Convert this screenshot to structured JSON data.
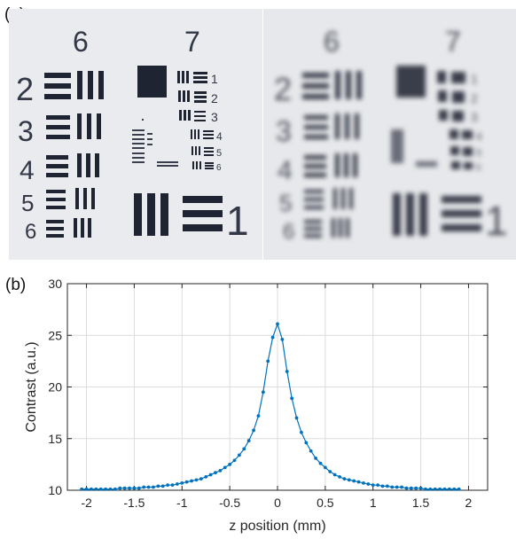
{
  "figure": {
    "panel_a_label": "(a)",
    "panel_b_label": "(b)",
    "panel_a": {
      "description_images": [
        "focused-resolution-target",
        "defocused-resolution-target"
      ],
      "target_labels": {
        "group_top_left": "6",
        "group_top_right": "7",
        "elements_left": [
          "2",
          "3",
          "4",
          "5",
          "6"
        ],
        "elements_right": [
          "1",
          "2",
          "3",
          "4",
          "5",
          "6"
        ],
        "large_element": "1"
      }
    }
  },
  "chart_data": {
    "type": "line",
    "title": "",
    "xlabel": "z position (mm)",
    "ylabel": "Contrast (a.u.)",
    "xlim": [
      -2.2,
      2.2
    ],
    "ylim": [
      10,
      30
    ],
    "xticks": [
      -2,
      -1.5,
      -1,
      -0.5,
      0,
      0.5,
      1,
      1.5,
      2
    ],
    "xtick_labels": [
      "-2",
      "-1.5",
      "-1",
      "-0.5",
      "0",
      "0.5",
      "1",
      "1.5",
      "2"
    ],
    "yticks": [
      10,
      15,
      20,
      25,
      30
    ],
    "ytick_labels": [
      "10",
      "15",
      "20",
      "25",
      "30"
    ],
    "grid": true,
    "line_color": "#0072BD",
    "series": [
      {
        "x": [
          -2.05,
          -2.0,
          -1.95,
          -1.9,
          -1.85,
          -1.8,
          -1.75,
          -1.7,
          -1.65,
          -1.6,
          -1.55,
          -1.5,
          -1.45,
          -1.4,
          -1.35,
          -1.3,
          -1.25,
          -1.2,
          -1.15,
          -1.1,
          -1.05,
          -1.0,
          -0.95,
          -0.9,
          -0.85,
          -0.8,
          -0.75,
          -0.7,
          -0.65,
          -0.6,
          -0.55,
          -0.5,
          -0.45,
          -0.4,
          -0.35,
          -0.3,
          -0.25,
          -0.2,
          -0.15,
          -0.1,
          -0.05,
          0.0,
          0.05,
          0.1,
          0.15,
          0.2,
          0.25,
          0.3,
          0.35,
          0.4,
          0.45,
          0.5,
          0.55,
          0.6,
          0.65,
          0.7,
          0.75,
          0.8,
          0.85,
          0.9,
          0.95,
          1.0,
          1.05,
          1.1,
          1.15,
          1.2,
          1.25,
          1.3,
          1.35,
          1.4,
          1.45,
          1.5,
          1.55,
          1.6,
          1.65,
          1.7,
          1.75,
          1.8,
          1.85,
          1.9
        ],
        "y": [
          10.1,
          10.1,
          10.1,
          10.1,
          10.1,
          10.1,
          10.1,
          10.1,
          10.2,
          10.2,
          10.2,
          10.2,
          10.2,
          10.3,
          10.3,
          10.3,
          10.4,
          10.4,
          10.5,
          10.5,
          10.6,
          10.7,
          10.8,
          10.9,
          11.0,
          11.1,
          11.3,
          11.5,
          11.7,
          11.9,
          12.2,
          12.5,
          12.9,
          13.4,
          14.0,
          14.8,
          15.8,
          17.2,
          19.5,
          22.5,
          24.8,
          26.1,
          24.6,
          21.5,
          18.9,
          17.0,
          15.6,
          14.6,
          13.8,
          13.1,
          12.6,
          12.2,
          11.8,
          11.5,
          11.3,
          11.1,
          11.0,
          10.9,
          10.8,
          10.7,
          10.6,
          10.5,
          10.5,
          10.4,
          10.4,
          10.3,
          10.3,
          10.3,
          10.2,
          10.2,
          10.2,
          10.2,
          10.1,
          10.1,
          10.1,
          10.1,
          10.1,
          10.1,
          10.1,
          10.1
        ]
      }
    ]
  }
}
